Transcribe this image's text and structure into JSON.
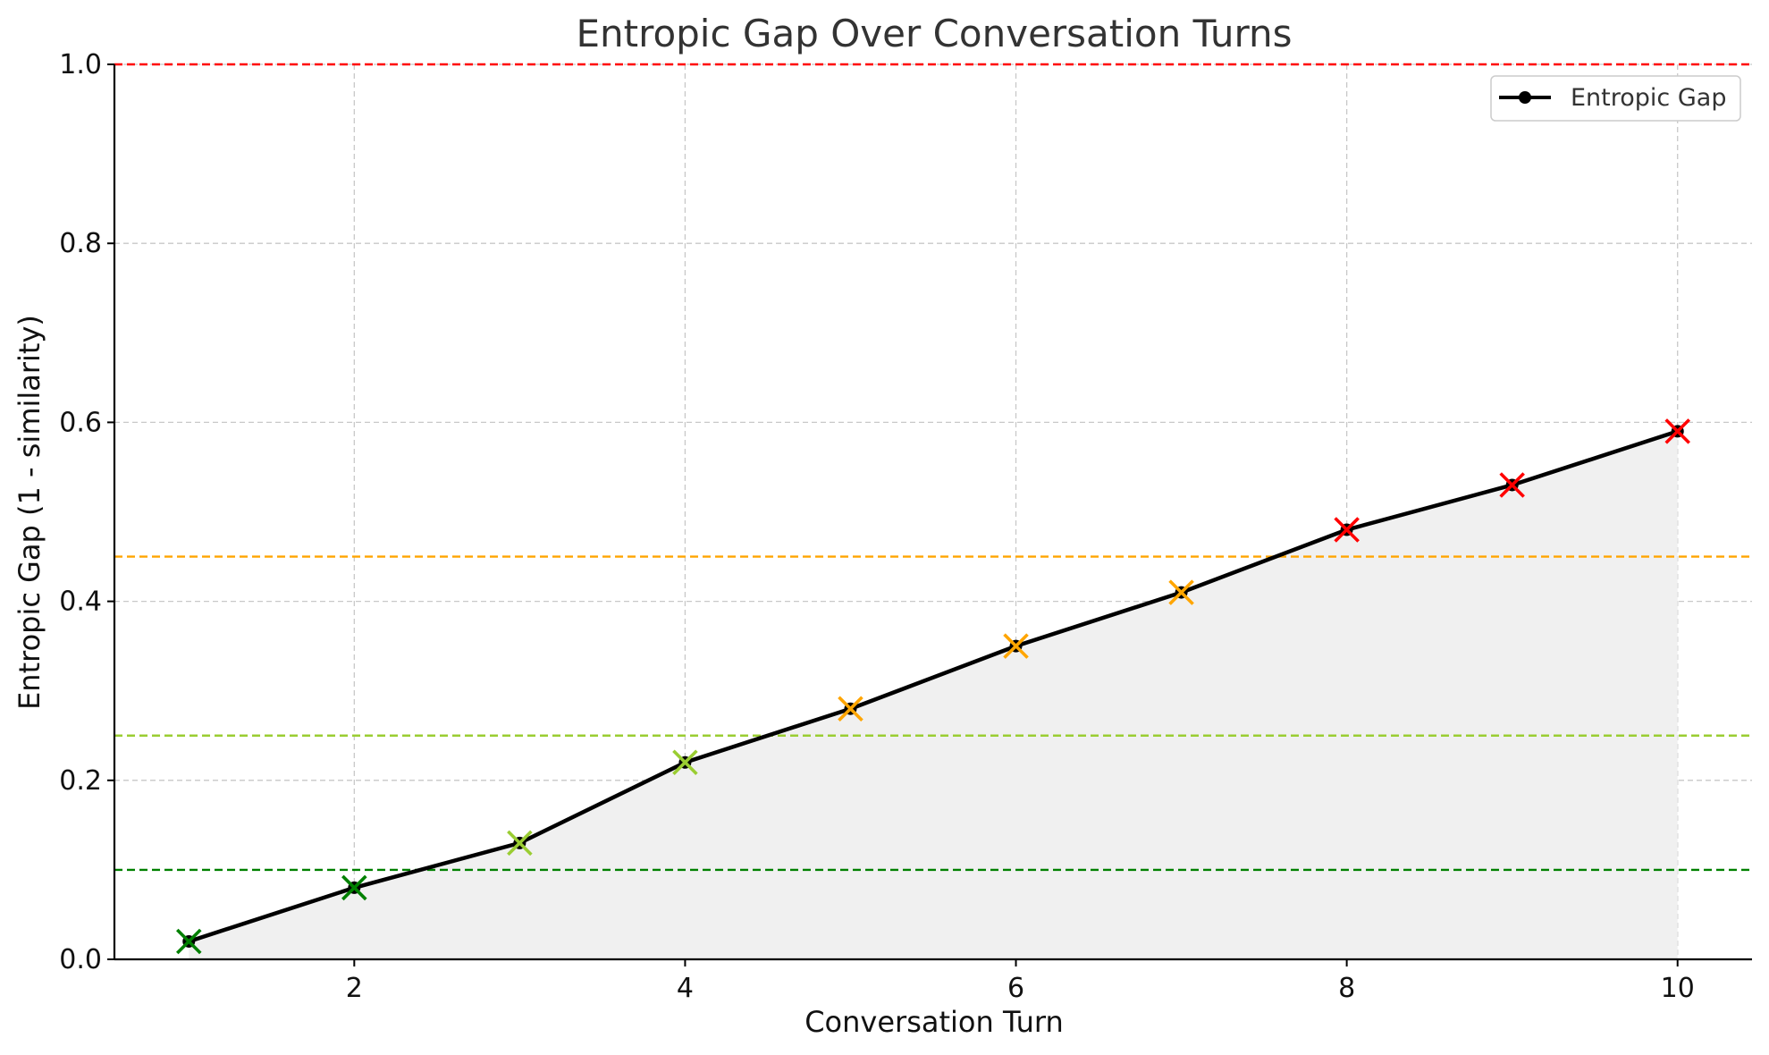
{
  "chart_data": {
    "type": "line",
    "title": "Entropic Gap Over Conversation Turns",
    "xlabel": "Conversation Turn",
    "ylabel": "Entropic Gap (1 - similarity)",
    "xlim": [
      0.55,
      10.45
    ],
    "ylim": [
      0.0,
      1.0
    ],
    "xticks": [
      2,
      4,
      6,
      8,
      10
    ],
    "yticks": [
      0.0,
      0.2,
      0.4,
      0.6,
      0.8,
      1.0
    ],
    "grid": true,
    "legend_position": "top-right",
    "series": [
      {
        "name": "Entropic Gap",
        "color": "#000000",
        "area_fill": "#f0f0f0",
        "x": [
          1,
          2,
          3,
          4,
          5,
          6,
          7,
          8,
          9,
          10
        ],
        "y": [
          0.02,
          0.08,
          0.13,
          0.22,
          0.28,
          0.35,
          0.41,
          0.48,
          0.53,
          0.59
        ],
        "marker_colors": [
          "#008000",
          "#008000",
          "#9acd32",
          "#9acd32",
          "#ffa500",
          "#ffa500",
          "#ffa500",
          "#ff0000",
          "#ff0000",
          "#ff0000"
        ]
      }
    ],
    "threshold_lines": [
      {
        "y": 1.0,
        "color": "#ff0000"
      },
      {
        "y": 0.45,
        "color": "#ffa500"
      },
      {
        "y": 0.25,
        "color": "#9acd32"
      },
      {
        "y": 0.1,
        "color": "#008000"
      }
    ]
  }
}
